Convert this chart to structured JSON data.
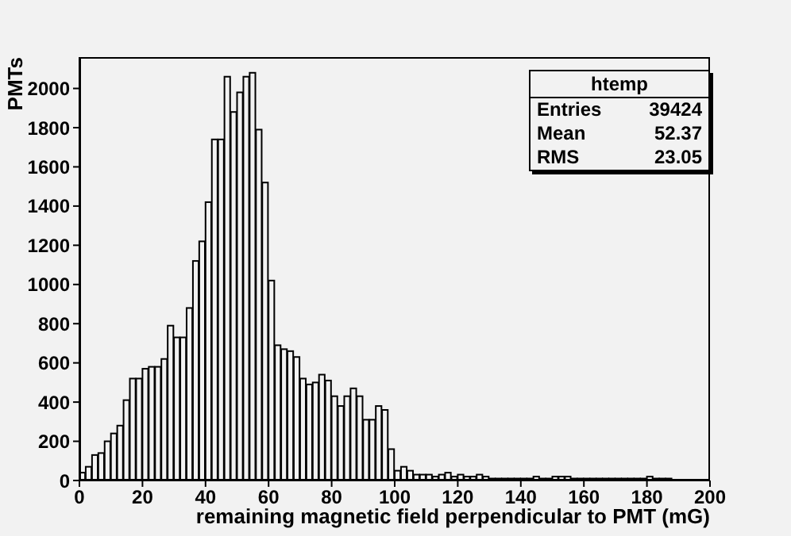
{
  "chart_data": {
    "type": "histogram",
    "xlabel": "remaining magnetic field perpendicular to PMT (mG)",
    "ylabel": "PMTs",
    "bins": [
      0,
      2,
      4,
      6,
      8,
      10,
      12,
      14,
      16,
      18,
      20,
      22,
      24,
      26,
      28,
      30,
      32,
      34,
      36,
      38,
      40,
      42,
      44,
      46,
      48,
      50,
      52,
      54,
      56,
      58,
      60,
      62,
      64,
      66,
      68,
      70,
      72,
      74,
      76,
      78,
      80,
      82,
      84,
      86,
      88,
      90,
      92,
      94,
      96,
      98,
      100,
      102,
      104,
      106,
      108,
      110,
      112,
      114,
      116,
      118,
      120,
      122,
      124,
      126,
      128,
      130,
      132,
      134,
      136,
      138,
      140,
      142,
      144,
      146,
      148,
      150,
      152,
      154,
      156,
      158,
      160,
      162,
      164,
      166,
      168,
      170,
      172,
      174,
      176,
      178,
      180,
      182,
      184,
      186,
      188,
      190,
      192,
      194,
      196,
      198,
      200
    ],
    "values": [
      40,
      70,
      130,
      140,
      200,
      240,
      280,
      410,
      520,
      520,
      570,
      580,
      580,
      620,
      790,
      730,
      730,
      880,
      1120,
      1220,
      1420,
      1740,
      1740,
      2060,
      1880,
      1980,
      2060,
      2080,
      1790,
      1520,
      1020,
      690,
      670,
      660,
      630,
      520,
      490,
      500,
      540,
      510,
      430,
      380,
      430,
      470,
      430,
      310,
      310,
      380,
      360,
      160,
      50,
      70,
      50,
      30,
      30,
      30,
      20,
      30,
      40,
      20,
      30,
      20,
      20,
      30,
      20,
      10,
      10,
      10,
      10,
      10,
      10,
      10,
      20,
      10,
      10,
      20,
      20,
      20,
      10,
      10,
      10,
      10,
      10,
      10,
      10,
      10,
      10,
      10,
      10,
      10,
      20,
      10,
      10,
      10,
      0,
      0,
      0,
      0,
      0,
      0
    ],
    "color": "#000000",
    "xlim": [
      0,
      200
    ],
    "xticks": [
      0,
      20,
      40,
      60,
      80,
      100,
      120,
      140,
      160,
      180,
      200
    ],
    "ylim": [
      0,
      2160
    ],
    "yticks": [
      0,
      200,
      400,
      600,
      800,
      1000,
      1200,
      1400,
      1600,
      1800,
      2000
    ],
    "grid": false,
    "legend": false,
    "annotations": [
      "htemp",
      "Entries",
      "39424",
      "Mean",
      "52.37",
      "RMS",
      "23.05"
    ]
  }
}
